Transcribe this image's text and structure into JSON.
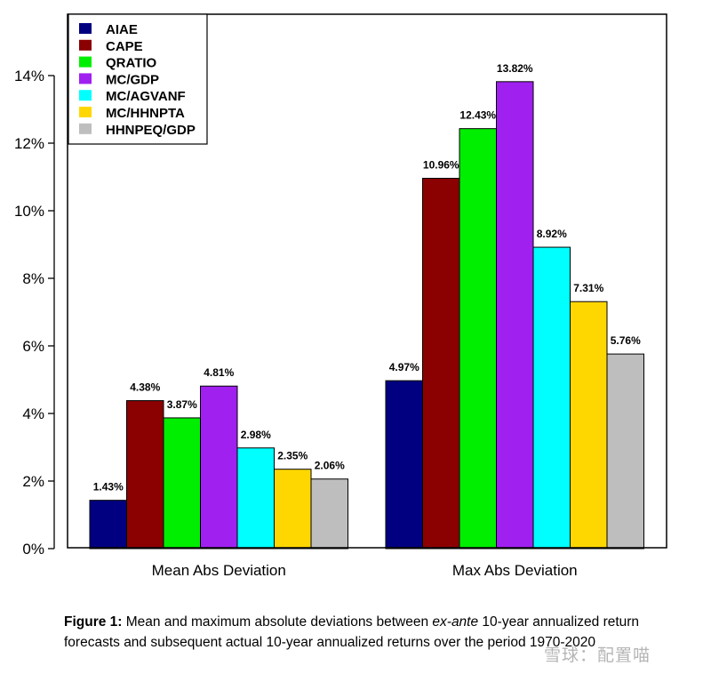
{
  "chart_data": {
    "type": "bar",
    "title": "",
    "xlabel": "",
    "ylabel": "",
    "ylim": [
      0,
      14
    ],
    "yticks": [
      "0%",
      "2%",
      "4%",
      "6%",
      "8%",
      "10%",
      "12%",
      "14%"
    ],
    "ytick_values": [
      0,
      2,
      4,
      6,
      8,
      10,
      12,
      14
    ],
    "categories": [
      "Mean Abs Deviation",
      "Max Abs Deviation"
    ],
    "legend_position": "top-left",
    "series": [
      {
        "name": "AIAE",
        "color": "#000080",
        "values": [
          1.43,
          4.97
        ],
        "labels": [
          "1.43%",
          "4.97%"
        ]
      },
      {
        "name": "CAPE",
        "color": "#8b0000",
        "values": [
          4.38,
          10.96
        ],
        "labels": [
          "4.38%",
          "10.96%"
        ]
      },
      {
        "name": "QRATIO",
        "color": "#00ee00",
        "values": [
          3.87,
          12.43
        ],
        "labels": [
          "3.87%",
          "12.43%"
        ]
      },
      {
        "name": "MC/GDP",
        "color": "#a020f0",
        "values": [
          4.81,
          13.82
        ],
        "labels": [
          "4.81%",
          "13.82%"
        ]
      },
      {
        "name": "MC/AGVANF",
        "color": "#00ffff",
        "values": [
          2.98,
          8.92
        ],
        "labels": [
          "2.98%",
          "8.92%"
        ]
      },
      {
        "name": "MC/HHNPTA",
        "color": "#ffd700",
        "values": [
          2.35,
          7.31
        ],
        "labels": [
          "2.35%",
          "7.31%"
        ]
      },
      {
        "name": "HHNPEQ/GDP",
        "color": "#bebebe",
        "values": [
          2.06,
          5.76
        ],
        "labels": [
          "2.06%",
          "5.76%"
        ]
      }
    ]
  },
  "caption": {
    "label": "Figure 1:",
    "text_before": " Mean and maximum absolute deviations between ",
    "emphasis": "ex-ante",
    "text_after": " 10-year annualized return forecasts and subsequent actual 10-year annualized returns over the period 1970-2020"
  },
  "watermark": "雪球：配置喵"
}
